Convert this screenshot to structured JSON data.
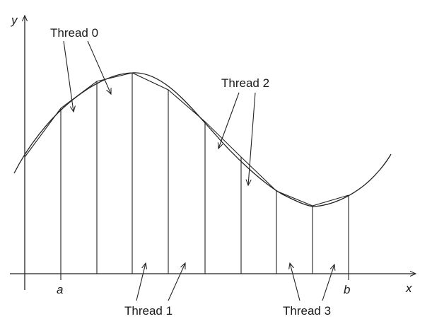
{
  "diagram": {
    "axis_labels": {
      "x": "x",
      "y": "y"
    },
    "bound_labels": {
      "a": "a",
      "b": "b"
    },
    "thread_labels": [
      "Thread 0",
      "Thread 1",
      "Thread 2",
      "Thread 3"
    ]
  }
}
